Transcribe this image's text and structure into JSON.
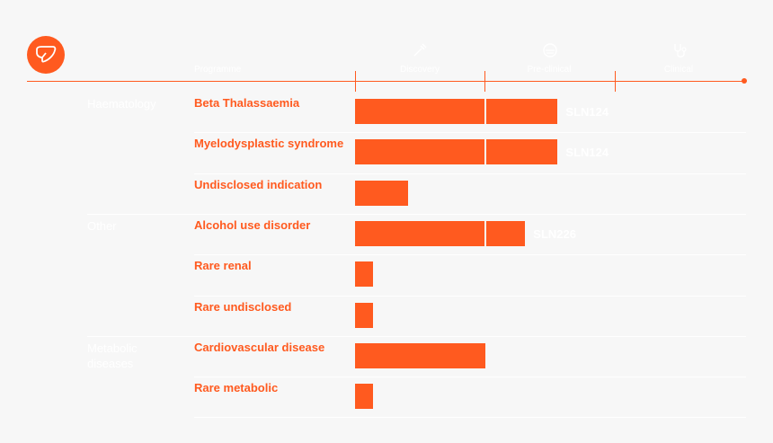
{
  "header": {
    "programme_label": "Programme",
    "phases": [
      {
        "name": "Discovery",
        "icon": "pipette-icon"
      },
      {
        "name": "Pre-clinical",
        "icon": "petri-dish-icon"
      },
      {
        "name": "Clinical",
        "icon": "stethoscope-icon"
      }
    ]
  },
  "logo": {
    "icon": "liver-icon"
  },
  "colors": {
    "accent": "#ff5a1f",
    "background": "#f7f7f7",
    "muted": "#ffffff"
  },
  "chart_data": {
    "type": "bar",
    "orientation": "horizontal",
    "xlim": [
      0,
      3
    ],
    "axis_ticks": [
      "Discovery",
      "Pre-clinical",
      "Clinical"
    ],
    "groups": [
      {
        "name": "Haematology",
        "programmes": [
          {
            "name": "Beta Thalassaemia",
            "progress": 1.56,
            "candidate": "SLN124"
          },
          {
            "name": "Myelodysplastic syndrome",
            "progress": 1.56,
            "candidate": "SLN124"
          },
          {
            "name": "Undisclosed indication",
            "progress": 0.41,
            "candidate": ""
          }
        ]
      },
      {
        "name": "Other",
        "programmes": [
          {
            "name": "Alcohol use disorder",
            "progress": 1.31,
            "candidate": "SLN226"
          },
          {
            "name": "Rare renal",
            "progress": 0.14,
            "candidate": ""
          },
          {
            "name": "Rare undisclosed",
            "progress": 0.14,
            "candidate": ""
          }
        ]
      },
      {
        "name": "Metabolic diseases",
        "programmes": [
          {
            "name": "Cardiovascular disease",
            "progress": 1.0,
            "candidate": ""
          },
          {
            "name": "Rare metabolic",
            "progress": 0.14,
            "candidate": ""
          }
        ]
      }
    ]
  }
}
